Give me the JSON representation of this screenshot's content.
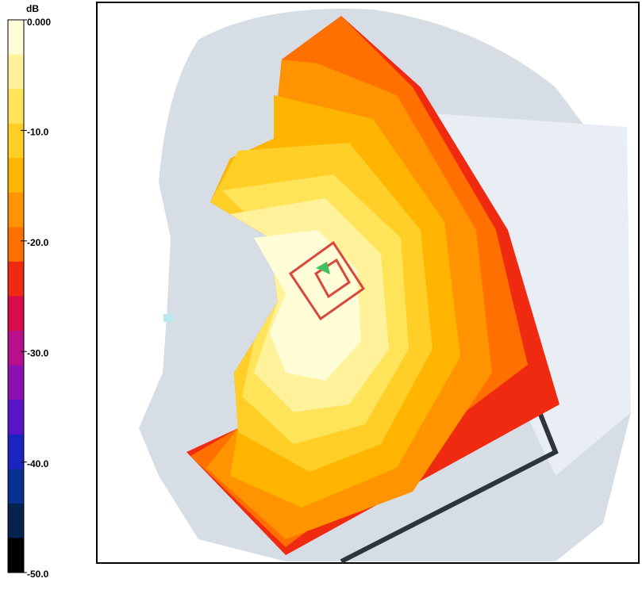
{
  "colorbar": {
    "unit": "dB",
    "range": [
      0,
      -50
    ],
    "ticks": [
      {
        "value": 0,
        "label": "0.000"
      },
      {
        "value": -10,
        "label": "-10.0"
      },
      {
        "value": -20,
        "label": "-20.0"
      },
      {
        "value": -30,
        "label": "-30.0"
      },
      {
        "value": -40,
        "label": "-40.0"
      },
      {
        "value": -50,
        "label": "-50.0"
      }
    ],
    "colors": [
      "#fffcd8",
      "#fff29a",
      "#ffe45a",
      "#ffcf28",
      "#ffb400",
      "#ff9400",
      "#ff7000",
      "#f02a10",
      "#d80c48",
      "#b8108c",
      "#8c10b0",
      "#5a14c8",
      "#1a24c0",
      "#083090",
      "#06224e"
    ],
    "bottom_color": "#000000"
  }
}
